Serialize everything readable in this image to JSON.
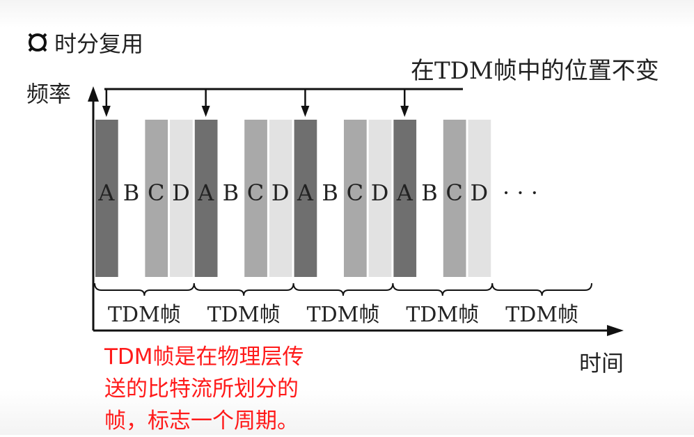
{
  "title": "时分复用",
  "y_axis_label": "频率",
  "x_axis_label": "时间",
  "top_annotation": "在TDM帧中的位置不变",
  "slot_letters": [
    "A",
    "B",
    "C",
    "D"
  ],
  "frame_label": "TDM帧",
  "frame_count": 5,
  "filled_frames": 4,
  "ellipsis": "· · ·",
  "note_lines": [
    "TDM帧是在物理层传",
    "送的比特流所划分的",
    "帧，标志一个周期。"
  ],
  "colors": {
    "A": "#6f6f6f",
    "B": "#ffffff",
    "C": "#a9a9a9",
    "D": "#e2e2e2",
    "note": "#ff1a1a"
  }
}
